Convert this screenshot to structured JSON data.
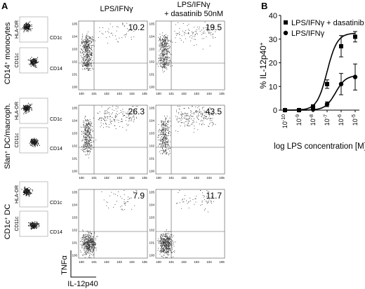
{
  "panel_a": {
    "letter": "A",
    "col_header_1": "LPS/IFNγ",
    "col_header_2_line1": "LPS/IFNγ",
    "col_header_2_line2": "+ dasatinib 50nM",
    "rows": [
      {
        "label_main": "CD14",
        "label_sup": "+",
        "label_rest": " monocytes",
        "gate_top_y": "HLA-DR",
        "gate_top_x": "CD1c",
        "gate_bottom_y": "CD11c",
        "gate_bottom_x": "CD14",
        "quadrant_values": [
          "10.2",
          "19.5"
        ]
      },
      {
        "label_main": "Slan",
        "label_sup": "+",
        "label_rest": " DC/macroph.",
        "gate_top_y": "HLA-DR",
        "gate_top_x": "CD1c",
        "gate_bottom_y": "CD11c",
        "gate_bottom_x": "CD14",
        "quadrant_values": [
          "26.3",
          "43.5"
        ]
      },
      {
        "label_main": "CD1c",
        "label_sup": "+",
        "label_rest": " DC",
        "gate_top_y": "HLA-DR",
        "gate_top_x": "CD1c",
        "gate_bottom_y": "CD11c",
        "gate_bottom_x": "CD14",
        "quadrant_values": [
          "7.9",
          "11.7"
        ]
      }
    ],
    "axis_y": "TNFα",
    "axis_x": "IL-12p40",
    "tick_exponents_small": [
      "0",
      "1",
      "2",
      "3",
      "4",
      "5"
    ],
    "tick_base_small": "10"
  },
  "chart_data": {
    "type": "line",
    "panel_letter": "B",
    "xlabel": "log LPS concentration [M]",
    "ylabel": "% IL-12p40",
    "ylabel_sup": "+",
    "x_tick_base": "10",
    "x_tick_exponents": [
      "-10",
      "-9",
      "-8",
      "-7",
      "-6",
      "-5"
    ],
    "x": [
      -10,
      -9,
      -8,
      -7,
      -6,
      -5
    ],
    "ylim": [
      0,
      40
    ],
    "y_ticks": [
      0,
      10,
      20,
      30,
      40
    ],
    "legend_position": "top-left",
    "series": [
      {
        "name": "LPS/IFNγ + dasatinib",
        "marker": "square",
        "values": [
          0,
          0,
          1.5,
          11,
          27,
          31
        ],
        "errors": [
          0,
          0,
          0.8,
          1.8,
          4.5,
          2.2
        ]
      },
      {
        "name": "LPS/IFNγ",
        "marker": "circle",
        "values": [
          0,
          0,
          0.3,
          2.5,
          11,
          14
        ],
        "errors": [
          0,
          0,
          0.2,
          1.0,
          4.5,
          5.5
        ]
      }
    ]
  }
}
